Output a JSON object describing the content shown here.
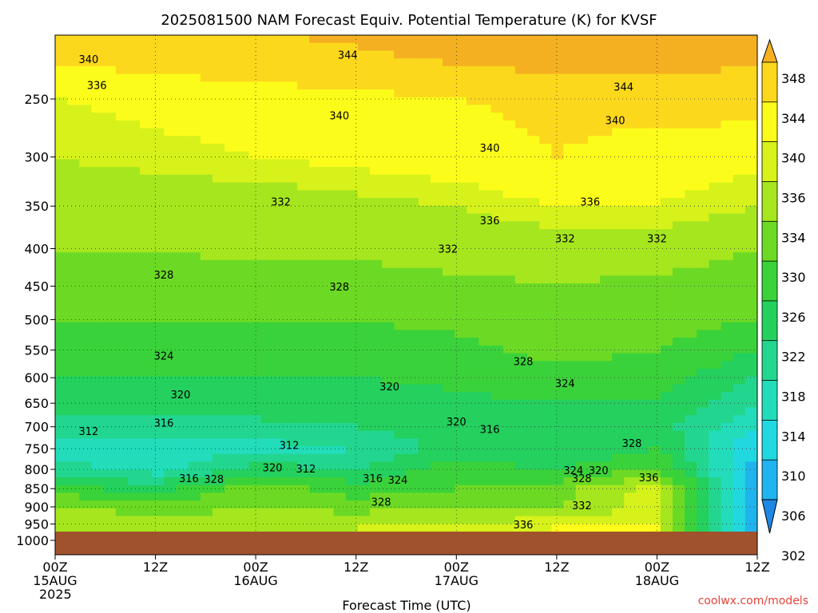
{
  "chart_data": {
    "type": "heatmap",
    "title": "2025081500 NAM Forecast Equiv. Potential Temperature (K) for KVSF",
    "xlabel": "Forecast Time (UTC)",
    "ylabel": "",
    "credit": "coolwx.com/models",
    "y_scale": "log-pressure",
    "y_reversed": true,
    "ylim": [
      1000,
      200
    ],
    "y_ticks": [
      250,
      300,
      350,
      400,
      450,
      500,
      550,
      600,
      650,
      700,
      750,
      800,
      850,
      900,
      950,
      1000
    ],
    "x_hours": [
      0,
      12,
      24,
      36,
      48,
      60,
      72,
      84
    ],
    "x_ticks": [
      {
        "h": 0,
        "lines": [
          "00Z",
          "15AUG",
          "2025"
        ]
      },
      {
        "h": 12,
        "lines": [
          "12Z"
        ]
      },
      {
        "h": 24,
        "lines": [
          "00Z",
          "16AUG"
        ]
      },
      {
        "h": 36,
        "lines": [
          "12Z"
        ]
      },
      {
        "h": 48,
        "lines": [
          "00Z",
          "17AUG"
        ]
      },
      {
        "h": 60,
        "lines": [
          "12Z"
        ]
      },
      {
        "h": 72,
        "lines": [
          "00Z",
          "18AUG"
        ]
      },
      {
        "h": 84,
        "lines": [
          "12Z"
        ]
      }
    ],
    "colorbar": {
      "levels": [
        302,
        306,
        310,
        314,
        318,
        322,
        326,
        330,
        334,
        336,
        340,
        344,
        348
      ],
      "tick_labels": [
        "348",
        "344",
        "340",
        "336",
        "334",
        "330",
        "326",
        "322",
        "318",
        "314",
        "310",
        "306",
        "302"
      ],
      "colors": [
        "#1e88e5",
        "#20b4ee",
        "#22d8e0",
        "#22dcba",
        "#22d690",
        "#24d05e",
        "#3ad23a",
        "#6cda24",
        "#a6e61e",
        "#d6f21a",
        "#fcfc1a",
        "#fcd81c",
        "#f4b020"
      ],
      "extend": "both"
    },
    "contour_interval_K": 2,
    "ground_color": "#a0522d",
    "theta_e_profiles": [
      {
        "p": 225,
        "theta_e": [
          340,
          341,
          342,
          343,
          344,
          345,
          345,
          344
        ]
      },
      {
        "p": 250,
        "theta_e": [
          336,
          337,
          338,
          339,
          340,
          341,
          342,
          342
        ]
      },
      {
        "p": 300,
        "theta_e": [
          334,
          335,
          336,
          337,
          338,
          340,
          338,
          337
        ]
      },
      {
        "p": 350,
        "theta_e": [
          332,
          332,
          332,
          333,
          334,
          336,
          336,
          334
        ]
      },
      {
        "p": 400,
        "theta_e": [
          330,
          330,
          331,
          331,
          332,
          332,
          332,
          330
        ]
      },
      {
        "p": 450,
        "theta_e": [
          328,
          328,
          328,
          328,
          329,
          330,
          329,
          328
        ]
      },
      {
        "p": 500,
        "theta_e": [
          326,
          326,
          326,
          326,
          327,
          328,
          328,
          326
        ]
      },
      {
        "p": 550,
        "theta_e": [
          324,
          324,
          324,
          324,
          325,
          327,
          326,
          322
        ]
      },
      {
        "p": 600,
        "theta_e": [
          322,
          322,
          322,
          322,
          323,
          325,
          324,
          318
        ]
      },
      {
        "p": 650,
        "theta_e": [
          320,
          320,
          320,
          320,
          321,
          322,
          322,
          314
        ]
      },
      {
        "p": 700,
        "theta_e": [
          316,
          316,
          317,
          318,
          320,
          320,
          320,
          310
        ]
      },
      {
        "p": 750,
        "theta_e": [
          312,
          311,
          312,
          314,
          320,
          318,
          322,
          306
        ]
      },
      {
        "p": 800,
        "theta_e": [
          316,
          312,
          320,
          318,
          324,
          322,
          326,
          304
        ]
      },
      {
        "p": 850,
        "theta_e": [
          324,
          320,
          328,
          324,
          326,
          328,
          336,
          302
        ]
      },
      {
        "p": 900,
        "theta_e": [
          330,
          328,
          330,
          328,
          330,
          330,
          336,
          302
        ]
      },
      {
        "p": 950,
        "theta_e": [
          334,
          332,
          332,
          334,
          334,
          336,
          336,
          302
        ]
      }
    ],
    "contour_labels": [
      {
        "text": "344",
        "h": 35,
        "p": 218
      },
      {
        "text": "344",
        "h": 68,
        "p": 241
      },
      {
        "text": "340",
        "h": 4,
        "p": 221
      },
      {
        "text": "340",
        "h": 34,
        "p": 264
      },
      {
        "text": "340",
        "h": 52,
        "p": 292
      },
      {
        "text": "340",
        "h": 67,
        "p": 268
      },
      {
        "text": "336",
        "h": 5,
        "p": 240
      },
      {
        "text": "336",
        "h": 64,
        "p": 346
      },
      {
        "text": "336",
        "h": 52,
        "p": 367
      },
      {
        "text": "336",
        "h": 71,
        "p": 822
      },
      {
        "text": "336",
        "h": 56,
        "p": 953
      },
      {
        "text": "332",
        "h": 27,
        "p": 346
      },
      {
        "text": "332",
        "h": 47,
        "p": 401
      },
      {
        "text": "332",
        "h": 61,
        "p": 388
      },
      {
        "text": "332",
        "h": 72,
        "p": 388
      },
      {
        "text": "332",
        "h": 63,
        "p": 898
      },
      {
        "text": "328",
        "h": 13,
        "p": 435
      },
      {
        "text": "328",
        "h": 34,
        "p": 452
      },
      {
        "text": "328",
        "h": 56,
        "p": 571
      },
      {
        "text": "328",
        "h": 69,
        "p": 738
      },
      {
        "text": "328",
        "h": 19,
        "p": 827
      },
      {
        "text": "328",
        "h": 39,
        "p": 888
      },
      {
        "text": "328",
        "h": 63,
        "p": 824
      },
      {
        "text": "324",
        "h": 13,
        "p": 561
      },
      {
        "text": "324",
        "h": 61,
        "p": 612
      },
      {
        "text": "324",
        "h": 41,
        "p": 829
      },
      {
        "text": "324",
        "h": 62,
        "p": 804
      },
      {
        "text": "320",
        "h": 15,
        "p": 634
      },
      {
        "text": "320",
        "h": 40,
        "p": 618
      },
      {
        "text": "320",
        "h": 48,
        "p": 690
      },
      {
        "text": "320",
        "h": 26,
        "p": 797
      },
      {
        "text": "320",
        "h": 65,
        "p": 804
      },
      {
        "text": "316",
        "h": 13,
        "p": 693
      },
      {
        "text": "316",
        "h": 52,
        "p": 707
      },
      {
        "text": "316",
        "h": 16,
        "p": 824
      },
      {
        "text": "316",
        "h": 38,
        "p": 824
      },
      {
        "text": "312",
        "h": 4,
        "p": 711
      },
      {
        "text": "312",
        "h": 28,
        "p": 743
      },
      {
        "text": "312",
        "h": 30,
        "p": 800
      }
    ]
  }
}
